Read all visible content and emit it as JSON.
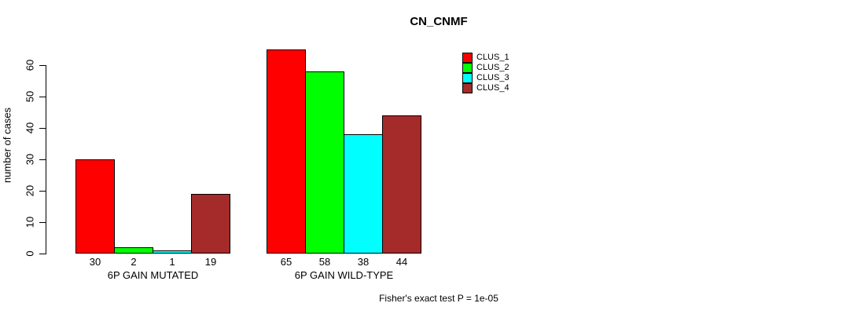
{
  "chart_data": {
    "type": "bar",
    "title": "CN_CNMF",
    "ylabel": "number of cases",
    "xlabel": "",
    "ylim": [
      0,
      60
    ],
    "yticks": [
      0,
      10,
      20,
      30,
      40,
      50,
      60
    ],
    "grid": false,
    "legend_position": "top-right",
    "categories": [
      "6P GAIN MUTATED",
      "6P GAIN WILD-TYPE"
    ],
    "series": [
      {
        "name": "CLUS_1",
        "color": "#FF0000",
        "values": [
          30,
          65
        ]
      },
      {
        "name": "CLUS_2",
        "color": "#00FF00",
        "values": [
          2,
          58
        ]
      },
      {
        "name": "CLUS_3",
        "color": "#00FFFF",
        "values": [
          1,
          38
        ]
      },
      {
        "name": "CLUS_4",
        "color": "#A52A2A",
        "values": [
          19,
          44
        ]
      }
    ],
    "bar_value_labels": true,
    "annotation": "Fisher's exact test P = 1e-05",
    "axis_color": "#000000",
    "bar_border_color": "#000000",
    "background_color": "#FFFFFF"
  }
}
